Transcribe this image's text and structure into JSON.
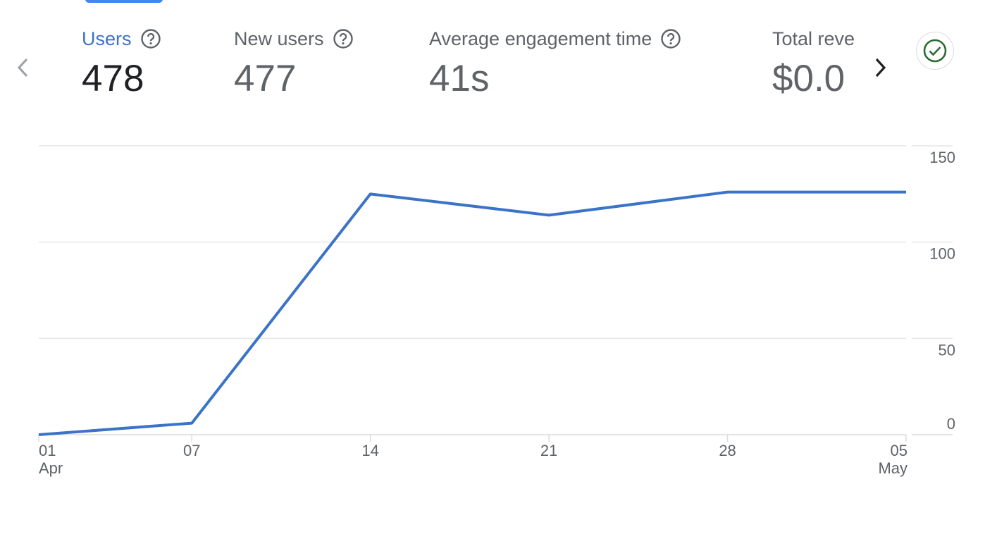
{
  "metrics": [
    {
      "label": "Users",
      "value": "478",
      "active": true
    },
    {
      "label": "New users",
      "value": "477",
      "active": false
    },
    {
      "label": "Average engagement time",
      "value": "41s",
      "active": false
    },
    {
      "label": "Total reve",
      "value": "$0.0",
      "active": false
    }
  ],
  "icons": {
    "prev": "chevron-left-icon",
    "next": "chevron-right-icon",
    "help": "help-circle-icon",
    "status": "check-circle-icon"
  },
  "colors": {
    "accent": "#3b73c8",
    "line": "#3b73c8",
    "status_green": "#2e6b30",
    "grid": "#e6e6e6"
  },
  "chart_data": {
    "type": "line",
    "x": [
      "2024-04-01",
      "2024-04-07",
      "2024-04-14",
      "2024-04-21",
      "2024-04-28",
      "2024-05-05"
    ],
    "x_tick_labels": [
      {
        "day": "01",
        "month": "Apr"
      },
      {
        "day": "07",
        "month": ""
      },
      {
        "day": "14",
        "month": ""
      },
      {
        "day": "21",
        "month": ""
      },
      {
        "day": "28",
        "month": ""
      },
      {
        "day": "05",
        "month": "May"
      }
    ],
    "series": [
      {
        "values": [
          0,
          6,
          125,
          114,
          126,
          126
        ]
      }
    ],
    "ylim": [
      0,
      150
    ],
    "y_ticks": [
      0,
      50,
      100,
      150
    ],
    "y_axis_side": "right",
    "grid": true
  }
}
